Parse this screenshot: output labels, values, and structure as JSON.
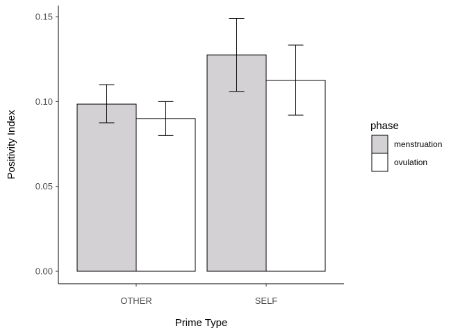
{
  "chart_data": {
    "type": "bar",
    "xlabel": "Prime Type",
    "ylabel": "Positivity Index",
    "categories": [
      "OTHER",
      "SELF"
    ],
    "ylim": [
      0,
      0.155
    ],
    "yticks": [
      0.0,
      0.05,
      0.1,
      0.15
    ],
    "ytick_labels": [
      "0.00",
      "0.05",
      "0.10",
      "0.15"
    ],
    "grid": false,
    "legend": {
      "title": "phase",
      "position": "right"
    },
    "series": [
      {
        "name": "menstruation",
        "color": "#d3d1d4",
        "values": [
          0.0985,
          0.1275
        ],
        "error_low": [
          0.0875,
          0.106
        ],
        "error_high": [
          0.11,
          0.149
        ]
      },
      {
        "name": "ovulation",
        "color": "#ffffff",
        "values": [
          0.09,
          0.1125
        ],
        "error_low": [
          0.08,
          0.092
        ],
        "error_high": [
          0.1,
          0.1333
        ]
      }
    ]
  }
}
